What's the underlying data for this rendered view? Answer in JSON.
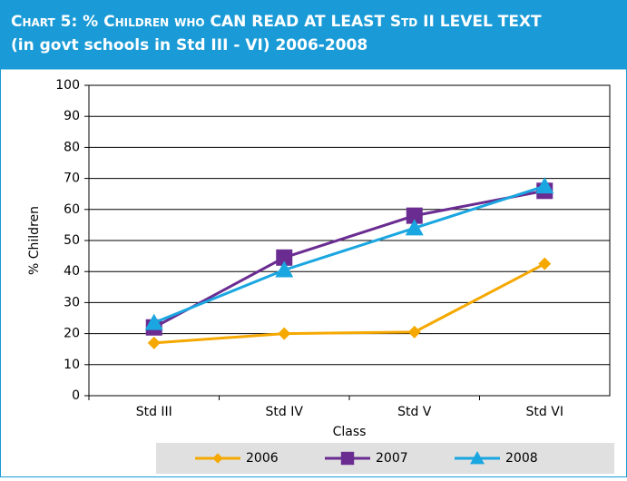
{
  "chart_data": {
    "type": "line",
    "title": "Chart 5: % Children who CAN  READ AT LEAST Std II  LEVEL TEXT",
    "subtitle": "(in govt schools in Std III - VI)  2006-2008",
    "x_label": "Class",
    "y_label": "% Children",
    "categories": [
      "Std III",
      "Std IV",
      "Std V",
      "Std VI"
    ],
    "series": [
      {
        "name": "2006",
        "color": "#f5a800",
        "marker": "diamond",
        "values": [
          17,
          20,
          20.5,
          42.5
        ]
      },
      {
        "name": "2007",
        "color": "#6a2c91",
        "marker": "square",
        "values": [
          22,
          44.5,
          58,
          66
        ]
      },
      {
        "name": "2008",
        "color": "#1aa6e0",
        "marker": "triangle",
        "values": [
          23.5,
          40.5,
          54,
          67.5
        ]
      }
    ],
    "ylim": [
      0,
      100
    ],
    "yticks": [
      0,
      10,
      20,
      30,
      40,
      50,
      60,
      70,
      80,
      90,
      100
    ],
    "grid": true,
    "legend": "bottom"
  }
}
